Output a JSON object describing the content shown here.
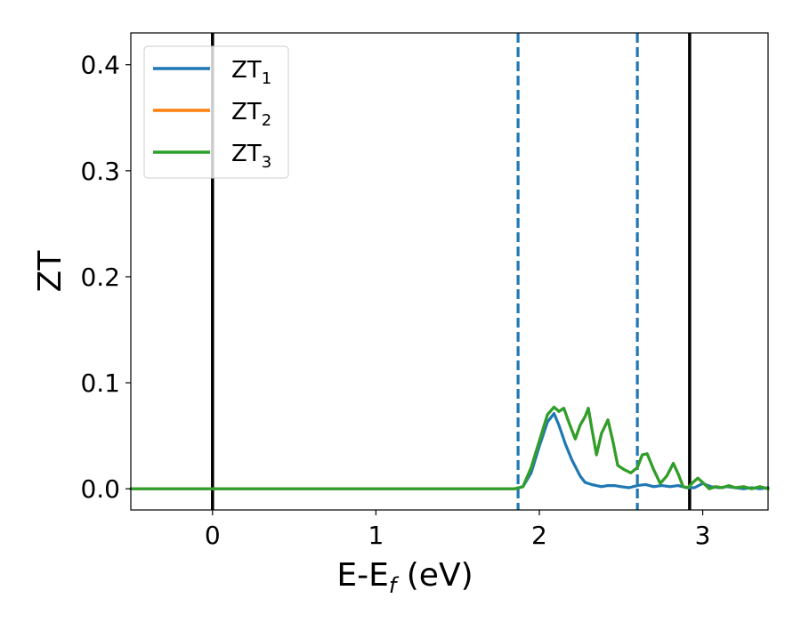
{
  "chart_data": {
    "type": "line",
    "xlabel_main": "E-E",
    "xlabel_sub": "f",
    "xlabel_unit": " (eV)",
    "ylabel": "ZT",
    "xlim": [
      -0.5,
      3.4
    ],
    "ylim": [
      -0.02,
      0.43
    ],
    "xticks": [
      0,
      1,
      2,
      3
    ],
    "yticks": [
      0.0,
      0.1,
      0.2,
      0.3,
      0.4
    ],
    "xtick_labels": [
      "0",
      "1",
      "2",
      "3"
    ],
    "ytick_labels": [
      "0.0",
      "0.1",
      "0.2",
      "0.3",
      "0.4"
    ],
    "grid": false,
    "legend_placement": "top-left",
    "vlines": [
      {
        "x": 0.0,
        "style": "solid",
        "color": "#000000"
      },
      {
        "x": 1.87,
        "style": "dashed",
        "color": "#1f77b4"
      },
      {
        "x": 2.6,
        "style": "dashed",
        "color": "#1f77b4"
      },
      {
        "x": 2.92,
        "style": "solid",
        "color": "#000000"
      }
    ],
    "series": [
      {
        "name": "ZT",
        "name_sub": "1",
        "color": "#1f77b4",
        "x": [
          -0.5,
          1.85,
          1.9,
          1.95,
          2.0,
          2.05,
          2.09,
          2.12,
          2.16,
          2.2,
          2.25,
          2.28,
          2.32,
          2.38,
          2.42,
          2.46,
          2.5,
          2.55,
          2.6,
          2.65,
          2.7,
          2.75,
          2.8,
          2.85,
          2.9,
          2.95,
          3.0,
          3.05,
          3.1,
          3.15,
          3.2,
          3.25,
          3.3,
          3.35,
          3.4
        ],
        "y": [
          0.0,
          0.0,
          0.002,
          0.015,
          0.04,
          0.063,
          0.071,
          0.06,
          0.042,
          0.027,
          0.012,
          0.006,
          0.004,
          0.002,
          0.003,
          0.003,
          0.002,
          0.001,
          0.003,
          0.004,
          0.002,
          0.003,
          0.002,
          0.003,
          0.001,
          0.001,
          0.005,
          0.002,
          0.001,
          0.002,
          0.001,
          0.0,
          0.001,
          0.0,
          0.001
        ]
      },
      {
        "name": "ZT",
        "name_sub": "2",
        "color": "#ff7f0e",
        "x": [
          -0.5,
          1.85,
          1.9,
          1.95,
          2.0,
          2.05,
          2.09,
          2.12,
          2.15,
          2.18,
          2.22,
          2.25,
          2.28,
          2.3,
          2.32,
          2.35,
          2.38,
          2.42,
          2.45,
          2.48,
          2.52,
          2.56,
          2.6,
          2.63,
          2.66,
          2.7,
          2.74,
          2.78,
          2.82,
          2.85,
          2.88,
          2.91,
          2.94,
          2.97,
          3.0,
          3.04,
          3.08,
          3.12,
          3.16,
          3.2,
          3.25,
          3.3,
          3.35,
          3.4
        ],
        "y": [
          0.0,
          0.0,
          0.002,
          0.02,
          0.045,
          0.07,
          0.077,
          0.073,
          0.076,
          0.063,
          0.047,
          0.06,
          0.068,
          0.076,
          0.058,
          0.032,
          0.052,
          0.065,
          0.045,
          0.022,
          0.018,
          0.015,
          0.02,
          0.032,
          0.033,
          0.018,
          0.005,
          0.012,
          0.024,
          0.014,
          0.002,
          0.001,
          0.006,
          0.01,
          0.006,
          0.0,
          0.002,
          0.001,
          0.003,
          0.001,
          0.002,
          0.0,
          0.002,
          0.0
        ]
      },
      {
        "name": "ZT",
        "name_sub": "3",
        "color": "#2ca02c",
        "x": [
          -0.5,
          1.85,
          1.9,
          1.95,
          2.0,
          2.05,
          2.09,
          2.12,
          2.15,
          2.18,
          2.22,
          2.25,
          2.28,
          2.3,
          2.32,
          2.35,
          2.38,
          2.42,
          2.45,
          2.48,
          2.52,
          2.56,
          2.6,
          2.63,
          2.66,
          2.7,
          2.74,
          2.78,
          2.82,
          2.85,
          2.88,
          2.91,
          2.94,
          2.97,
          3.0,
          3.04,
          3.08,
          3.12,
          3.16,
          3.2,
          3.25,
          3.3,
          3.35,
          3.4
        ],
        "y": [
          0.0,
          0.0,
          0.002,
          0.02,
          0.045,
          0.07,
          0.077,
          0.073,
          0.076,
          0.063,
          0.047,
          0.06,
          0.068,
          0.076,
          0.058,
          0.032,
          0.052,
          0.065,
          0.045,
          0.022,
          0.018,
          0.015,
          0.02,
          0.032,
          0.033,
          0.018,
          0.005,
          0.012,
          0.024,
          0.014,
          0.002,
          0.001,
          0.006,
          0.01,
          0.006,
          0.0,
          0.002,
          0.001,
          0.003,
          0.001,
          0.002,
          0.0,
          0.002,
          0.0
        ]
      }
    ]
  }
}
